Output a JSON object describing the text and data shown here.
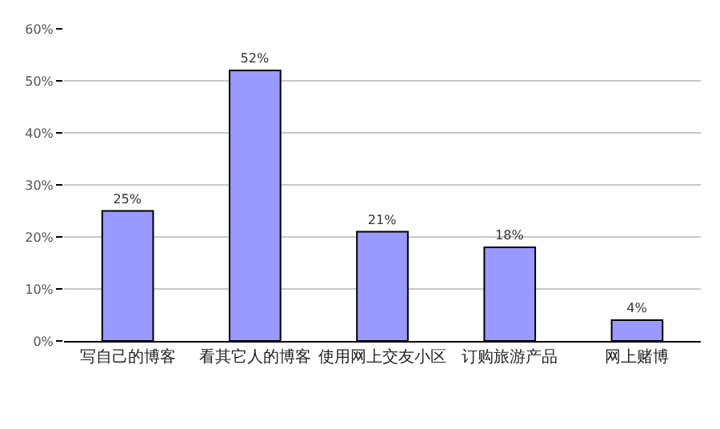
{
  "chart_data": {
    "type": "bar",
    "categories": [
      "写自己的博客",
      "看其它人的博客",
      "使用网上交友小区",
      "订购旅游产品",
      "网上赌博"
    ],
    "values": [
      25,
      52,
      21,
      18,
      4
    ],
    "value_labels": [
      "25%",
      "52%",
      "21%",
      "18%",
      "4%"
    ],
    "color": "#9999ff",
    "ylim": [
      0,
      60
    ],
    "yticks": [
      {
        "value": 0,
        "label": "0%"
      },
      {
        "value": 10,
        "label": "10%"
      },
      {
        "value": 20,
        "label": "20%"
      },
      {
        "value": 30,
        "label": "30%"
      },
      {
        "value": 40,
        "label": "40%"
      },
      {
        "value": 50,
        "label": "50%"
      },
      {
        "value": 60,
        "label": "60%"
      }
    ],
    "grid": "y"
  }
}
